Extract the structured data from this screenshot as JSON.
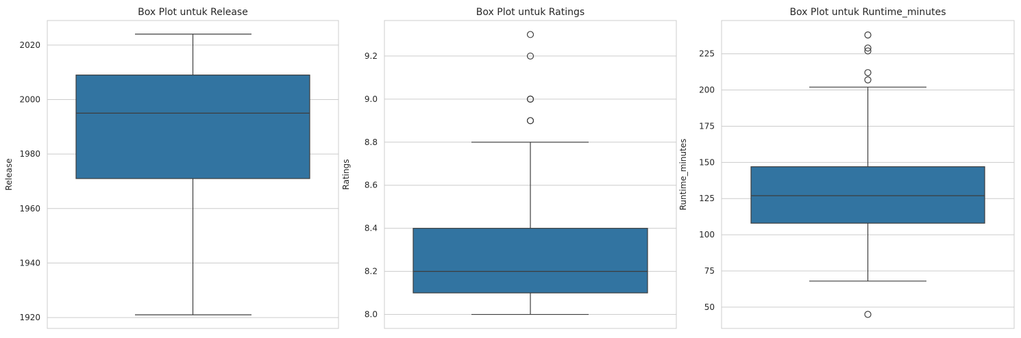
{
  "colors": {
    "box_fill": "#3274a1",
    "line": "#3d3d3d",
    "grid": "#cccccc",
    "frame": "#cccccc"
  },
  "chart_data": [
    {
      "type": "box",
      "title": "Box Plot untuk Release",
      "xlabel": "",
      "ylabel": "Release",
      "ylim": [
        1916,
        2029
      ],
      "yticks": [
        1920,
        1940,
        1960,
        1980,
        2000,
        2020
      ],
      "ytick_labels": [
        "1920",
        "1940",
        "1960",
        "1980",
        "2000",
        "2020"
      ],
      "grid": true,
      "box": {
        "whisker_low": 1921,
        "q1": 1971,
        "median": 1995,
        "q3": 2009,
        "whisker_high": 2024
      },
      "outliers": []
    },
    {
      "type": "box",
      "title": "Box Plot untuk Ratings",
      "xlabel": "",
      "ylabel": "Ratings",
      "ylim": [
        7.935,
        9.365
      ],
      "yticks": [
        8.0,
        8.2,
        8.4,
        8.6,
        8.8,
        9.0,
        9.2
      ],
      "ytick_labels": [
        "8.0",
        "8.2",
        "8.4",
        "8.6",
        "8.8",
        "9.0",
        "9.2"
      ],
      "grid": true,
      "box": {
        "whisker_low": 8.0,
        "q1": 8.1,
        "median": 8.2,
        "q3": 8.4,
        "whisker_high": 8.8
      },
      "outliers": [
        8.9,
        8.9,
        9.0,
        9.0,
        9.2,
        9.3
      ]
    },
    {
      "type": "box",
      "title": "Box Plot untuk Runtime_minutes",
      "xlabel": "",
      "ylabel": "Runtime_minutes",
      "ylim": [
        35.3,
        248
      ],
      "yticks": [
        50,
        75,
        100,
        125,
        150,
        175,
        200,
        225
      ],
      "ytick_labels": [
        "50",
        "75",
        "100",
        "125",
        "150",
        "175",
        "200",
        "225"
      ],
      "grid": true,
      "box": {
        "whisker_low": 68,
        "q1": 108,
        "median": 127,
        "q3": 147,
        "whisker_high": 202
      },
      "outliers": [
        45,
        207,
        212,
        227,
        229,
        238
      ]
    }
  ]
}
